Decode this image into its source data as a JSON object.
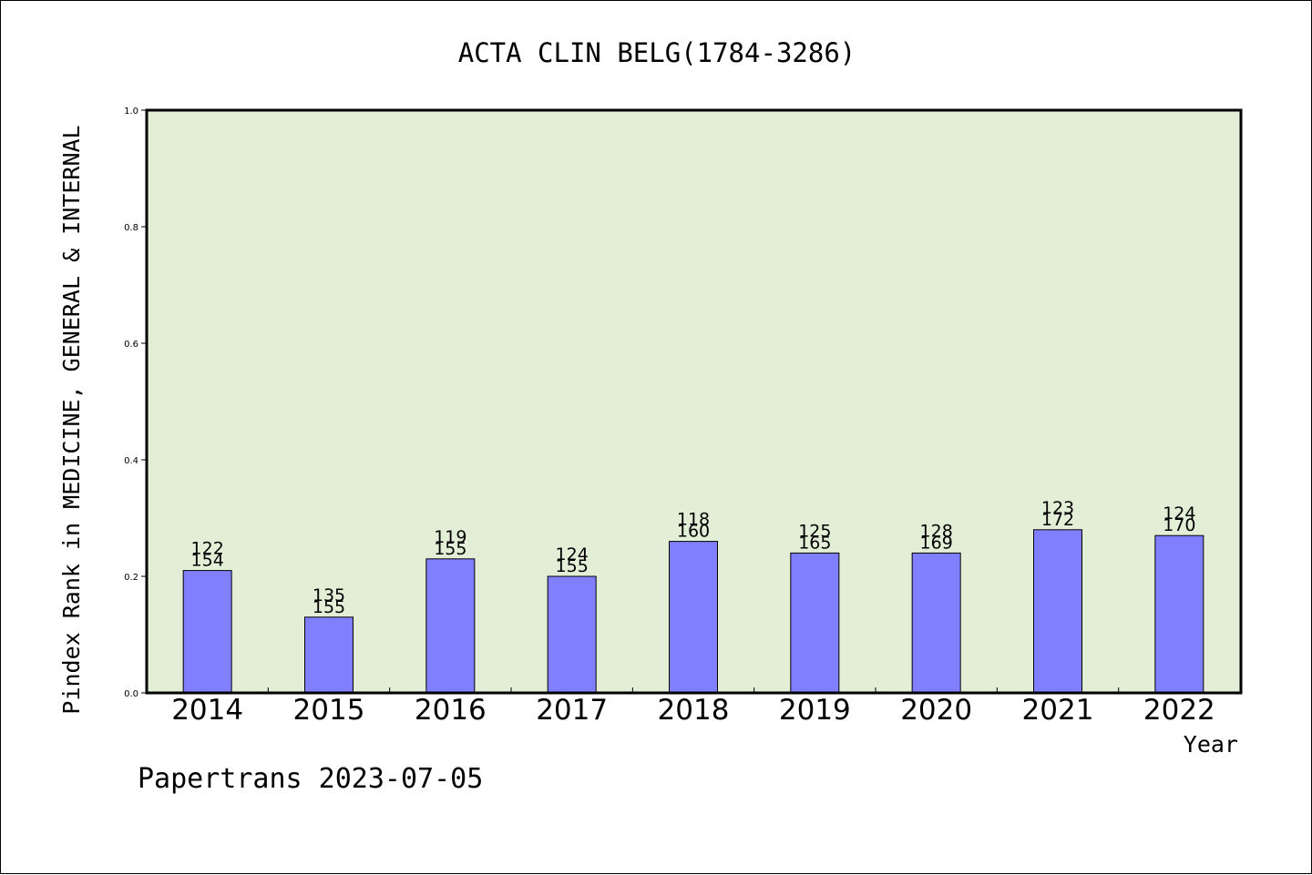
{
  "chart_data": {
    "type": "bar",
    "title": "ACTA CLIN BELG(1784-3286)",
    "xlabel": "Year",
    "ylabel": "Pindex Rank in MEDICINE, GENERAL & INTERNAL",
    "ylim": [
      0,
      1.0
    ],
    "yticks": [
      "0.0",
      "0.2",
      "0.4",
      "0.6",
      "0.8",
      "1.0"
    ],
    "categories": [
      "2014",
      "2015",
      "2016",
      "2017",
      "2018",
      "2019",
      "2020",
      "2021",
      "2022"
    ],
    "values": [
      0.21,
      0.13,
      0.23,
      0.2,
      0.26,
      0.24,
      0.24,
      0.28,
      0.27
    ],
    "labels_top": [
      "122",
      "135",
      "119",
      "124",
      "118",
      "125",
      "128",
      "123",
      "124"
    ],
    "labels_bottom": [
      "154",
      "155",
      "155",
      "155",
      "160",
      "165",
      "169",
      "172",
      "170"
    ],
    "grid": false,
    "colors": {
      "bar": "#8080ff",
      "plot_background": "#e2efd6"
    }
  },
  "footer": "Papertrans 2023-07-05"
}
